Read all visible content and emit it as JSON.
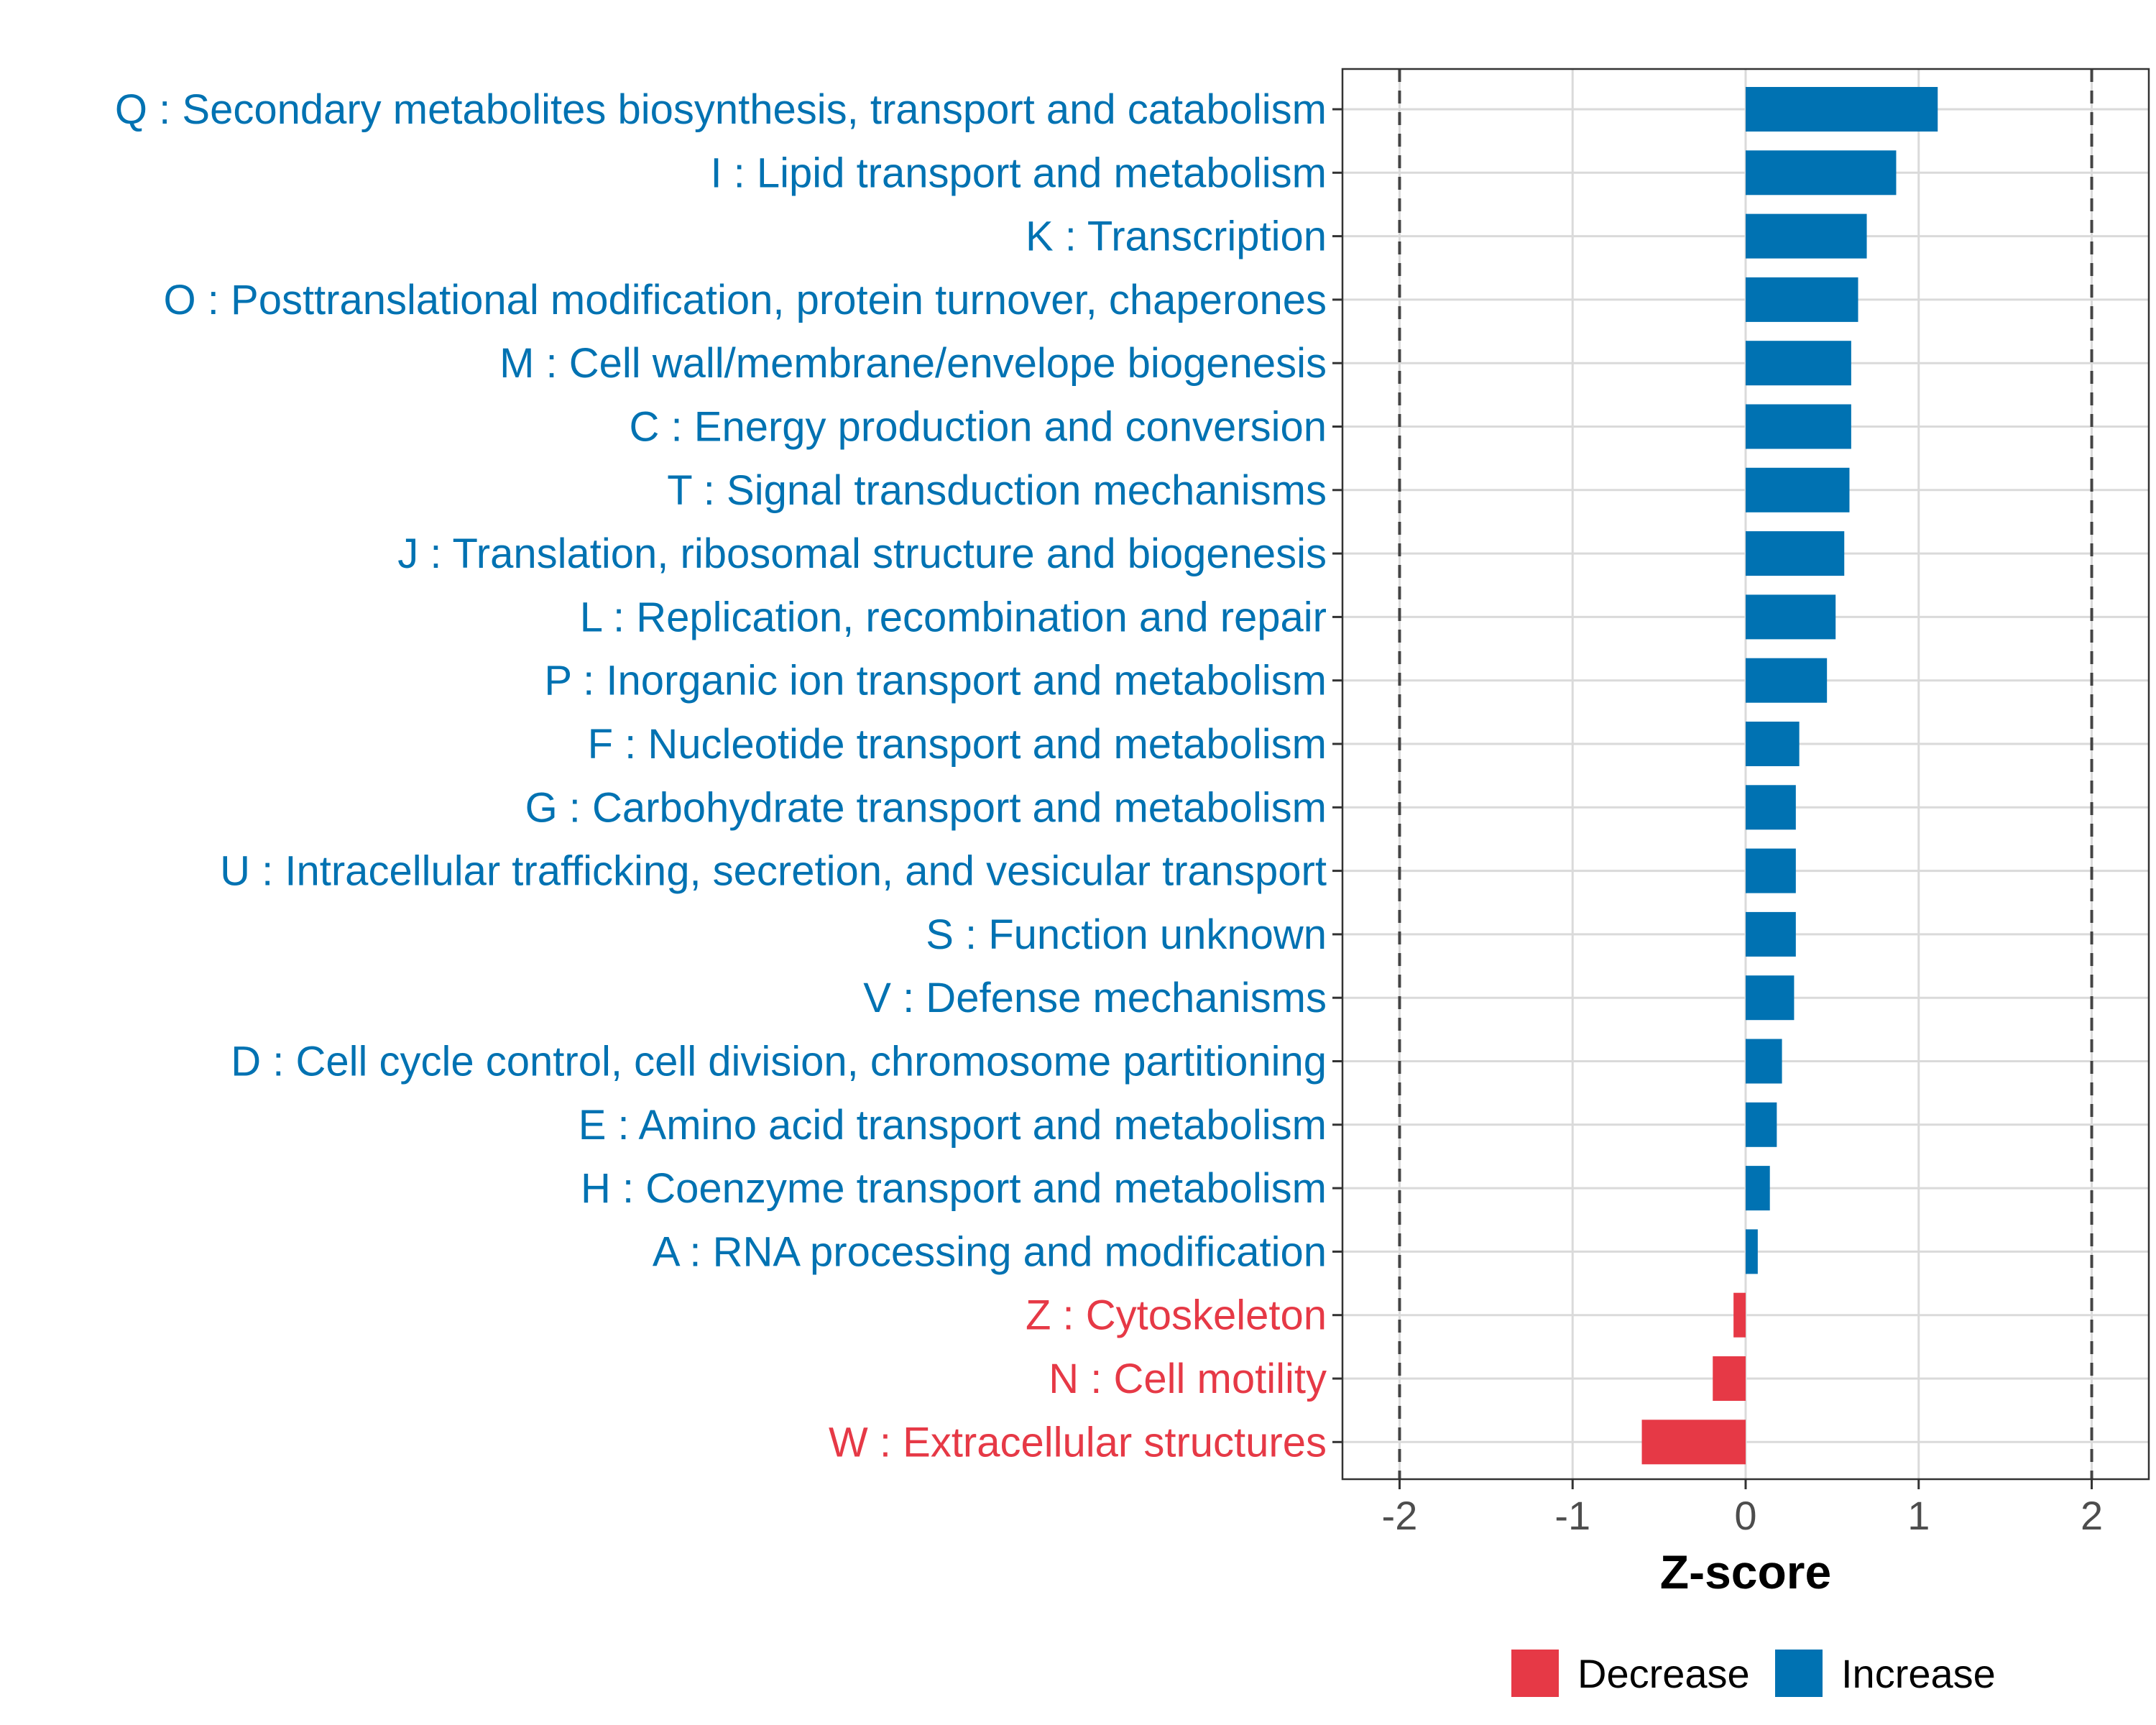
{
  "chart_data": {
    "type": "bar",
    "orientation": "horizontal",
    "title": "",
    "xlabel": "Z-score",
    "ylabel": "",
    "xlim": [
      -2.33,
      2.33
    ],
    "xticks": [
      -2,
      -1,
      0,
      1,
      2
    ],
    "xtick_labels": [
      "-2",
      "-1",
      "0",
      "1",
      "2"
    ],
    "reference_lines": [
      -2,
      2
    ],
    "grid": true,
    "colors": {
      "Increase": "#0072b2",
      "Decrease": "#e63946"
    },
    "categories": [
      "Q : Secondary metabolites biosynthesis, transport and catabolism",
      "I : Lipid transport and metabolism",
      "K : Transcription",
      "O : Posttranslational modification, protein turnover, chaperones",
      "M : Cell wall/membrane/envelope biogenesis",
      "C : Energy production and conversion",
      "T : Signal transduction mechanisms",
      "J : Translation, ribosomal structure and biogenesis",
      "L : Replication, recombination and repair",
      "P : Inorganic ion transport and metabolism",
      "F : Nucleotide transport and metabolism",
      "G : Carbohydrate transport and metabolism",
      "U : Intracellular trafficking, secretion, and vesicular transport",
      "S : Function unknown",
      "V : Defense mechanisms",
      "D : Cell cycle control, cell division, chromosome partitioning",
      "E : Amino acid transport and metabolism",
      "H : Coenzyme transport and metabolism",
      "A : RNA processing and modification",
      "Z : Cytoskeleton",
      "N : Cell motility",
      "W : Extracellular structures"
    ],
    "values": [
      1.11,
      0.87,
      0.7,
      0.65,
      0.61,
      0.61,
      0.6,
      0.57,
      0.52,
      0.47,
      0.31,
      0.29,
      0.29,
      0.29,
      0.28,
      0.21,
      0.18,
      0.14,
      0.07,
      -0.07,
      -0.19,
      -0.6
    ],
    "groups": [
      "Increase",
      "Increase",
      "Increase",
      "Increase",
      "Increase",
      "Increase",
      "Increase",
      "Increase",
      "Increase",
      "Increase",
      "Increase",
      "Increase",
      "Increase",
      "Increase",
      "Increase",
      "Increase",
      "Increase",
      "Increase",
      "Increase",
      "Decrease",
      "Decrease",
      "Decrease"
    ],
    "legend": {
      "placement": "bottom",
      "entries": [
        "Decrease",
        "Increase"
      ]
    }
  }
}
